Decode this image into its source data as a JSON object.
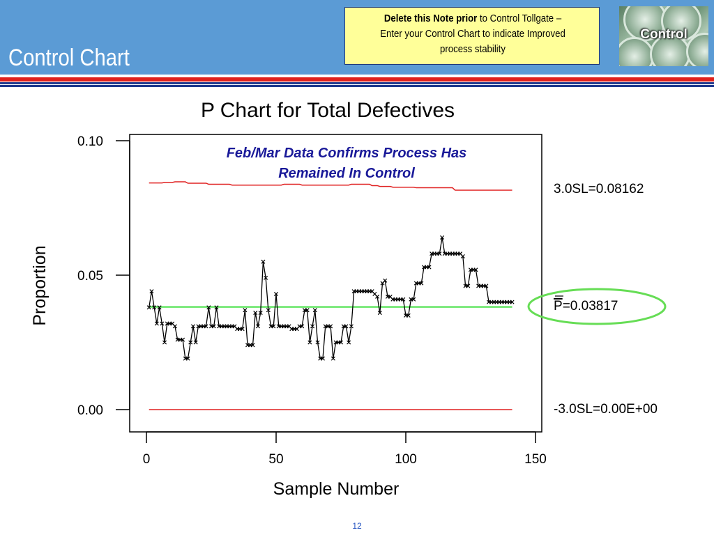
{
  "slide": {
    "title": "Control Chart",
    "note_bold": "Delete this Note prior",
    "note_rest_line1": " to Control Tollgate –",
    "note_line2": "Enter your Control Chart to indicate Improved",
    "note_line3": "process stability",
    "badge_label": "Control",
    "page_number": "12"
  },
  "colors": {
    "header": "#5b9bd5",
    "stripe_red": "#e0201b",
    "stripe_blue": "#1f3a8f",
    "note_bg": "#ffff99",
    "limit_line": "#e02020",
    "center_line": "#33dd33",
    "highlight_ellipse": "#66dd55",
    "annotation_text": "#1a1a99"
  },
  "chart_data": {
    "type": "line",
    "title": "P Chart for Total Defectives",
    "xlabel": "Sample Number",
    "ylabel": "Proportion",
    "xlim": [
      0,
      150
    ],
    "ylim": [
      0.0,
      0.1
    ],
    "x_ticks": [
      0,
      50,
      100,
      150
    ],
    "y_ticks": [
      "0.10",
      "0.05",
      "0.00"
    ],
    "annotation": [
      "Feb/Mar Data Confirms Process Has",
      "Remained In Control"
    ],
    "limit_labels": {
      "ucl": "3.0SL=0.08162",
      "center_bar": "P",
      "center": "=0.03817",
      "lcl": "-3.0SL=0.00E+00"
    },
    "center_value": 0.03817,
    "lcl_value": 0.0,
    "ucl": {
      "x": [
        1,
        6,
        7,
        10,
        11,
        15,
        16,
        23,
        24,
        32,
        33,
        52,
        53,
        59,
        60,
        78,
        79,
        86,
        87,
        89,
        90,
        94,
        95,
        103,
        104,
        118,
        119,
        141
      ],
      "y": [
        0.0843,
        0.0843,
        0.0845,
        0.0845,
        0.0847,
        0.0847,
        0.0842,
        0.0842,
        0.0838,
        0.0838,
        0.0835,
        0.0835,
        0.0838,
        0.0838,
        0.0835,
        0.0835,
        0.0838,
        0.0838,
        0.0833,
        0.0833,
        0.083,
        0.083,
        0.0827,
        0.0827,
        0.0825,
        0.0825,
        0.0816,
        0.0816
      ]
    },
    "series": [
      {
        "x": [
          1,
          2,
          3,
          4,
          5,
          6,
          7,
          8,
          9,
          10,
          11,
          12,
          13,
          14,
          15,
          16,
          17,
          18,
          19,
          20,
          21,
          22,
          23,
          24,
          25,
          26,
          27,
          28,
          29,
          30,
          31,
          32,
          33,
          34,
          35,
          36,
          37,
          38,
          39,
          40,
          41,
          42,
          43,
          44,
          45,
          46,
          47,
          48,
          49,
          50,
          51,
          52,
          53,
          54,
          55,
          56,
          57,
          58,
          59,
          60,
          61,
          62,
          63,
          64,
          65,
          66,
          67,
          68,
          69,
          70,
          71,
          72,
          73,
          74,
          75,
          76,
          77,
          78,
          79,
          80,
          81,
          82,
          83,
          84,
          85,
          86,
          87,
          88,
          89,
          90,
          91,
          92,
          93,
          94,
          95,
          96,
          97,
          98,
          99,
          100,
          101,
          102,
          103,
          104,
          105,
          106,
          107,
          108,
          109,
          110,
          111,
          112,
          113,
          114,
          115,
          116,
          117,
          118,
          119,
          120,
          121,
          122,
          123,
          124,
          125,
          126,
          127,
          128,
          129,
          130,
          131,
          132,
          133,
          134,
          135,
          136,
          137,
          138,
          139,
          140,
          141
        ],
        "values": [
          0.038,
          0.044,
          0.038,
          0.032,
          0.038,
          0.032,
          0.025,
          0.032,
          0.032,
          0.032,
          0.031,
          0.026,
          0.026,
          0.026,
          0.019,
          0.019,
          0.025,
          0.031,
          0.025,
          0.031,
          0.031,
          0.031,
          0.031,
          0.038,
          0.031,
          0.031,
          0.038,
          0.031,
          0.031,
          0.031,
          0.031,
          0.031,
          0.031,
          0.031,
          0.03,
          0.03,
          0.03,
          0.037,
          0.024,
          0.024,
          0.024,
          0.036,
          0.031,
          0.036,
          0.055,
          0.049,
          0.037,
          0.031,
          0.031,
          0.043,
          0.031,
          0.031,
          0.031,
          0.031,
          0.031,
          0.03,
          0.03,
          0.03,
          0.031,
          0.031,
          0.037,
          0.037,
          0.025,
          0.031,
          0.037,
          0.025,
          0.019,
          0.019,
          0.031,
          0.031,
          0.031,
          0.019,
          0.025,
          0.025,
          0.025,
          0.031,
          0.031,
          0.025,
          0.031,
          0.044,
          0.044,
          0.044,
          0.044,
          0.044,
          0.044,
          0.044,
          0.044,
          0.043,
          0.042,
          0.036,
          0.047,
          0.048,
          0.042,
          0.042,
          0.041,
          0.041,
          0.041,
          0.041,
          0.041,
          0.035,
          0.035,
          0.041,
          0.041,
          0.047,
          0.047,
          0.047,
          0.053,
          0.053,
          0.053,
          0.058,
          0.058,
          0.058,
          0.058,
          0.064,
          0.058,
          0.058,
          0.058,
          0.058,
          0.058,
          0.058,
          0.058,
          0.057,
          0.046,
          0.046,
          0.052,
          0.052,
          0.052,
          0.046,
          0.046,
          0.046,
          0.046,
          0.04,
          0.04,
          0.04,
          0.04,
          0.04,
          0.04,
          0.04,
          0.04,
          0.04,
          0.04
        ]
      }
    ]
  }
}
